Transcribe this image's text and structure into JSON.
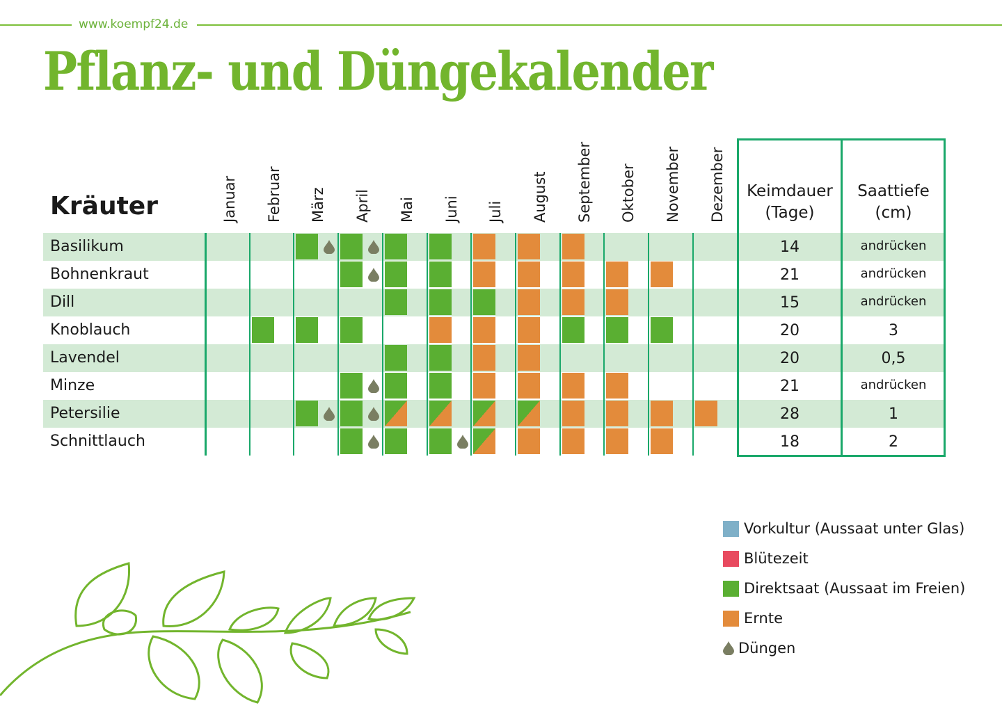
{
  "header": {
    "url": "www.koempf24.de",
    "title": "Pflanz- und Düngekalender"
  },
  "table": {
    "herb_header": "Kräuter",
    "months": [
      "Januar",
      "Februar",
      "März",
      "April",
      "Mai",
      "Juni",
      "Juli",
      "August",
      "September",
      "Oktober",
      "November",
      "Dezember"
    ],
    "col_keimdauer": [
      "Keimdauer",
      "(Tage)"
    ],
    "col_saattiefe": [
      "Saattiefe",
      "(cm)"
    ],
    "rows": [
      {
        "name": "Basilikum",
        "cells": [
          "",
          "",
          "g",
          "g",
          "g",
          "g",
          "o",
          "o",
          "o",
          "",
          "",
          ""
        ],
        "drops": [
          2,
          3
        ],
        "keimdauer": "14",
        "saattiefe": "andrücken"
      },
      {
        "name": "Bohnenkraut",
        "cells": [
          "",
          "",
          "",
          "g",
          "g",
          "g",
          "o",
          "o",
          "o",
          "o",
          "o",
          ""
        ],
        "drops": [
          3
        ],
        "keimdauer": "21",
        "saattiefe": "andrücken"
      },
      {
        "name": "Dill",
        "cells": [
          "",
          "",
          "",
          "",
          "g",
          "g",
          "g",
          "o",
          "o",
          "o",
          "",
          ""
        ],
        "drops": [],
        "keimdauer": "15",
        "saattiefe": "andrücken"
      },
      {
        "name": "Knoblauch",
        "cells": [
          "",
          "g",
          "g",
          "g",
          "",
          "o",
          "o",
          "o",
          "g",
          "g",
          "g",
          ""
        ],
        "drops": [],
        "keimdauer": "20",
        "saattiefe": "3"
      },
      {
        "name": "Lavendel",
        "cells": [
          "",
          "",
          "",
          "",
          "g",
          "g",
          "o",
          "o",
          "",
          "",
          "",
          ""
        ],
        "drops": [],
        "keimdauer": "20",
        "saattiefe": "0,5"
      },
      {
        "name": "Minze",
        "cells": [
          "",
          "",
          "",
          "g",
          "g",
          "g",
          "o",
          "o",
          "o",
          "o",
          "",
          ""
        ],
        "drops": [
          3
        ],
        "keimdauer": "21",
        "saattiefe": "andrücken"
      },
      {
        "name": "Petersilie",
        "cells": [
          "",
          "",
          "g",
          "g",
          "go",
          "go",
          "go",
          "go",
          "o",
          "o",
          "o",
          "o"
        ],
        "drops": [
          2,
          3
        ],
        "keimdauer": "28",
        "saattiefe": "1"
      },
      {
        "name": "Schnittlauch",
        "cells": [
          "",
          "",
          "",
          "g",
          "g",
          "g",
          "go",
          "o",
          "o",
          "o",
          "o",
          ""
        ],
        "drops": [
          3,
          5
        ],
        "keimdauer": "18",
        "saattiefe": "2"
      }
    ]
  },
  "legend": [
    {
      "label": "Vorkultur (Aussaat unter Glas)",
      "color": "#7fb0c8",
      "icon": "square"
    },
    {
      "label": "Blütezeit",
      "color": "#e84a5f",
      "icon": "square"
    },
    {
      "label": "Direktsaat (Aussaat im Freien)",
      "color": "#5aaf32",
      "icon": "square"
    },
    {
      "label": "Ernte",
      "color": "#e38b3b",
      "icon": "square"
    },
    {
      "label": "Düngen",
      "color": "#7a7e62",
      "icon": "drop-icon"
    }
  ],
  "colors": {
    "title": "#72b52d",
    "green": "#5aaf32",
    "orange": "#e38b3b",
    "row_alt": "#d3ead5",
    "lines": "#1aa86a",
    "drop": "#7a7e62"
  }
}
